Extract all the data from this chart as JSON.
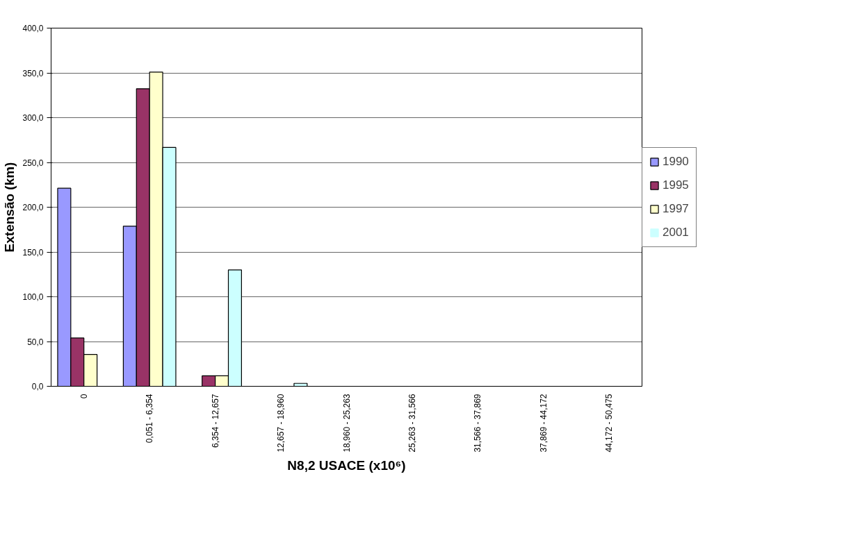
{
  "chart_data": {
    "type": "bar",
    "xlabel": "N8,2 USACE (x10⁶)",
    "ylabel": "Extensão (km)",
    "categories": [
      "0",
      "0,051 - 6,354",
      "6,354 - 12,657",
      "12,657 - 18,960",
      "18,960 - 25,263",
      "25,263 - 31,566",
      "31,566 - 37,869",
      "37,869 - 44,172",
      "44,172 - 50,475"
    ],
    "series": [
      {
        "name": "1990",
        "color": "#9999ff",
        "values": [
          221.2,
          178.8,
          0,
          0,
          0,
          0,
          0,
          0,
          0
        ]
      },
      {
        "name": "1995",
        "color": "#993366",
        "values": [
          53.9,
          332.3,
          11.7,
          0,
          0,
          0,
          0,
          0,
          0
        ]
      },
      {
        "name": "1997",
        "color": "#ffffcc",
        "values": [
          35.5,
          350.9,
          11.7,
          0,
          0,
          0,
          0,
          0,
          0
        ]
      },
      {
        "name": "2001",
        "color": "#ccffff",
        "values": [
          0,
          266.7,
          130.0,
          3.3,
          0,
          0,
          0,
          0,
          0
        ]
      }
    ],
    "ylim": [
      0,
      400
    ],
    "yticks": [
      {
        "value": 0,
        "label": "0,0"
      },
      {
        "value": 50,
        "label": "50,0"
      },
      {
        "value": 100,
        "label": "100,0"
      },
      {
        "value": 150,
        "label": "150,0"
      },
      {
        "value": 200,
        "label": "200,0"
      },
      {
        "value": 250,
        "label": "250,0"
      },
      {
        "value": 300,
        "label": "300,0"
      },
      {
        "value": 350,
        "label": "350,0"
      },
      {
        "value": 400,
        "label": "400,0"
      }
    ],
    "grid": "y",
    "legend": "right"
  }
}
